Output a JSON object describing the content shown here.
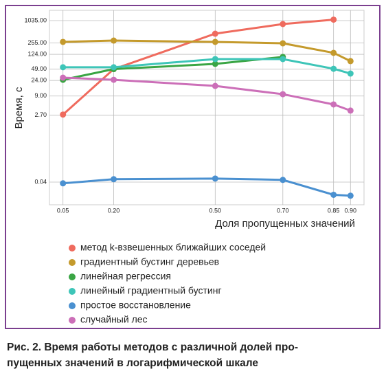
{
  "chart_data": {
    "type": "line",
    "x_label": "Доля пропущенных значений",
    "y_label": "Время, с",
    "log_y": true,
    "grid": true,
    "x": [
      0.05,
      0.2,
      0.5,
      0.7,
      0.85,
      0.9
    ],
    "xlim": [
      0.01,
      0.94
    ],
    "xticks": [
      0.05,
      {
        "value": 0.2,
        "label": "0.20"
      },
      {
        "value": 0.5,
        "label": "0.50"
      },
      {
        "value": 0.7,
        "label": "0.70"
      },
      0.85,
      {
        "value": 0.9,
        "label": "0.90"
      }
    ],
    "ylim": [
      0.0096,
      1980
    ],
    "yticks": [
      {
        "value": 0.04,
        "label": "0.04"
      },
      {
        "value": 2.7,
        "label": "2.70"
      },
      {
        "value": 9,
        "label": "9.00"
      },
      {
        "value": 24,
        "label": "24.00"
      },
      {
        "value": 49,
        "label": "49.00"
      },
      {
        "value": 124,
        "label": "124.00"
      },
      {
        "value": 255,
        "label": "255.00"
      },
      {
        "value": 1035,
        "label": "1035.00"
      }
    ],
    "series": [
      {
        "name": "метод k-взвешенных ближайших соседей",
        "color": "#ef6b5e",
        "values": [
          2.8,
          49,
          455,
          834,
          1100,
          null
        ]
      },
      {
        "name": "градиентный бустинг деревьев",
        "color": "#c49a2c",
        "values": [
          271,
          295,
          271,
          248,
          136,
          81
        ]
      },
      {
        "name": "линейная регрессия",
        "color": "#3aa544",
        "values": [
          25,
          49,
          68,
          105,
          null,
          null
        ]
      },
      {
        "name": "линейный градиентный бустинг",
        "color": "#3ec5b8",
        "values": [
          55,
          55,
          92,
          92,
          50,
          37
        ]
      },
      {
        "name": "простое восстановление",
        "color": "#4a90d0",
        "values": [
          0.037,
          0.048,
          0.05,
          0.046,
          0.018,
          0.017
        ]
      },
      {
        "name": "случайный лес",
        "color": "#cc6fb8",
        "values": [
          28.6,
          25,
          17,
          10.1,
          5.3,
          3.6
        ]
      }
    ]
  },
  "caption": [
    "Рис. 2. Время работы методов с различной долей про-",
    "пущенных значений в логарифмической шкале"
  ]
}
